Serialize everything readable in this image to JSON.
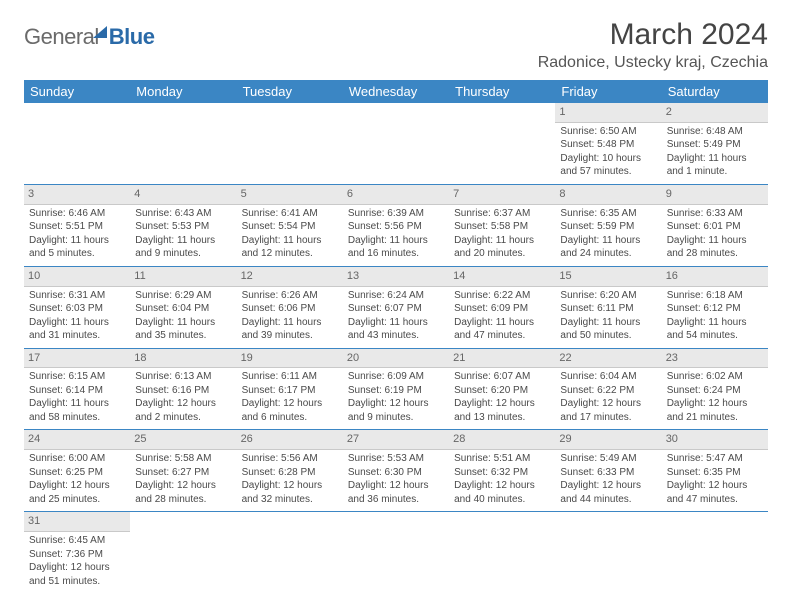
{
  "logo": {
    "text1": "General",
    "text2": "Blue"
  },
  "title": "March 2024",
  "location": "Radonice, Ustecky kraj, Czechia",
  "colors": {
    "header_bg": "#3b86c4",
    "header_fg": "#ffffff",
    "day_bg": "#e9e9e9",
    "border": "#3b86c4"
  },
  "day_headers": [
    "Sunday",
    "Monday",
    "Tuesday",
    "Wednesday",
    "Thursday",
    "Friday",
    "Saturday"
  ],
  "weeks": [
    [
      null,
      null,
      null,
      null,
      null,
      {
        "n": "1",
        "sr": "Sunrise: 6:50 AM",
        "ss": "Sunset: 5:48 PM",
        "d1": "Daylight: 10 hours",
        "d2": "and 57 minutes."
      },
      {
        "n": "2",
        "sr": "Sunrise: 6:48 AM",
        "ss": "Sunset: 5:49 PM",
        "d1": "Daylight: 11 hours",
        "d2": "and 1 minute."
      }
    ],
    [
      {
        "n": "3",
        "sr": "Sunrise: 6:46 AM",
        "ss": "Sunset: 5:51 PM",
        "d1": "Daylight: 11 hours",
        "d2": "and 5 minutes."
      },
      {
        "n": "4",
        "sr": "Sunrise: 6:43 AM",
        "ss": "Sunset: 5:53 PM",
        "d1": "Daylight: 11 hours",
        "d2": "and 9 minutes."
      },
      {
        "n": "5",
        "sr": "Sunrise: 6:41 AM",
        "ss": "Sunset: 5:54 PM",
        "d1": "Daylight: 11 hours",
        "d2": "and 12 minutes."
      },
      {
        "n": "6",
        "sr": "Sunrise: 6:39 AM",
        "ss": "Sunset: 5:56 PM",
        "d1": "Daylight: 11 hours",
        "d2": "and 16 minutes."
      },
      {
        "n": "7",
        "sr": "Sunrise: 6:37 AM",
        "ss": "Sunset: 5:58 PM",
        "d1": "Daylight: 11 hours",
        "d2": "and 20 minutes."
      },
      {
        "n": "8",
        "sr": "Sunrise: 6:35 AM",
        "ss": "Sunset: 5:59 PM",
        "d1": "Daylight: 11 hours",
        "d2": "and 24 minutes."
      },
      {
        "n": "9",
        "sr": "Sunrise: 6:33 AM",
        "ss": "Sunset: 6:01 PM",
        "d1": "Daylight: 11 hours",
        "d2": "and 28 minutes."
      }
    ],
    [
      {
        "n": "10",
        "sr": "Sunrise: 6:31 AM",
        "ss": "Sunset: 6:03 PM",
        "d1": "Daylight: 11 hours",
        "d2": "and 31 minutes."
      },
      {
        "n": "11",
        "sr": "Sunrise: 6:29 AM",
        "ss": "Sunset: 6:04 PM",
        "d1": "Daylight: 11 hours",
        "d2": "and 35 minutes."
      },
      {
        "n": "12",
        "sr": "Sunrise: 6:26 AM",
        "ss": "Sunset: 6:06 PM",
        "d1": "Daylight: 11 hours",
        "d2": "and 39 minutes."
      },
      {
        "n": "13",
        "sr": "Sunrise: 6:24 AM",
        "ss": "Sunset: 6:07 PM",
        "d1": "Daylight: 11 hours",
        "d2": "and 43 minutes."
      },
      {
        "n": "14",
        "sr": "Sunrise: 6:22 AM",
        "ss": "Sunset: 6:09 PM",
        "d1": "Daylight: 11 hours",
        "d2": "and 47 minutes."
      },
      {
        "n": "15",
        "sr": "Sunrise: 6:20 AM",
        "ss": "Sunset: 6:11 PM",
        "d1": "Daylight: 11 hours",
        "d2": "and 50 minutes."
      },
      {
        "n": "16",
        "sr": "Sunrise: 6:18 AM",
        "ss": "Sunset: 6:12 PM",
        "d1": "Daylight: 11 hours",
        "d2": "and 54 minutes."
      }
    ],
    [
      {
        "n": "17",
        "sr": "Sunrise: 6:15 AM",
        "ss": "Sunset: 6:14 PM",
        "d1": "Daylight: 11 hours",
        "d2": "and 58 minutes."
      },
      {
        "n": "18",
        "sr": "Sunrise: 6:13 AM",
        "ss": "Sunset: 6:16 PM",
        "d1": "Daylight: 12 hours",
        "d2": "and 2 minutes."
      },
      {
        "n": "19",
        "sr": "Sunrise: 6:11 AM",
        "ss": "Sunset: 6:17 PM",
        "d1": "Daylight: 12 hours",
        "d2": "and 6 minutes."
      },
      {
        "n": "20",
        "sr": "Sunrise: 6:09 AM",
        "ss": "Sunset: 6:19 PM",
        "d1": "Daylight: 12 hours",
        "d2": "and 9 minutes."
      },
      {
        "n": "21",
        "sr": "Sunrise: 6:07 AM",
        "ss": "Sunset: 6:20 PM",
        "d1": "Daylight: 12 hours",
        "d2": "and 13 minutes."
      },
      {
        "n": "22",
        "sr": "Sunrise: 6:04 AM",
        "ss": "Sunset: 6:22 PM",
        "d1": "Daylight: 12 hours",
        "d2": "and 17 minutes."
      },
      {
        "n": "23",
        "sr": "Sunrise: 6:02 AM",
        "ss": "Sunset: 6:24 PM",
        "d1": "Daylight: 12 hours",
        "d2": "and 21 minutes."
      }
    ],
    [
      {
        "n": "24",
        "sr": "Sunrise: 6:00 AM",
        "ss": "Sunset: 6:25 PM",
        "d1": "Daylight: 12 hours",
        "d2": "and 25 minutes."
      },
      {
        "n": "25",
        "sr": "Sunrise: 5:58 AM",
        "ss": "Sunset: 6:27 PM",
        "d1": "Daylight: 12 hours",
        "d2": "and 28 minutes."
      },
      {
        "n": "26",
        "sr": "Sunrise: 5:56 AM",
        "ss": "Sunset: 6:28 PM",
        "d1": "Daylight: 12 hours",
        "d2": "and 32 minutes."
      },
      {
        "n": "27",
        "sr": "Sunrise: 5:53 AM",
        "ss": "Sunset: 6:30 PM",
        "d1": "Daylight: 12 hours",
        "d2": "and 36 minutes."
      },
      {
        "n": "28",
        "sr": "Sunrise: 5:51 AM",
        "ss": "Sunset: 6:32 PM",
        "d1": "Daylight: 12 hours",
        "d2": "and 40 minutes."
      },
      {
        "n": "29",
        "sr": "Sunrise: 5:49 AM",
        "ss": "Sunset: 6:33 PM",
        "d1": "Daylight: 12 hours",
        "d2": "and 44 minutes."
      },
      {
        "n": "30",
        "sr": "Sunrise: 5:47 AM",
        "ss": "Sunset: 6:35 PM",
        "d1": "Daylight: 12 hours",
        "d2": "and 47 minutes."
      }
    ],
    [
      {
        "n": "31",
        "sr": "Sunrise: 6:45 AM",
        "ss": "Sunset: 7:36 PM",
        "d1": "Daylight: 12 hours",
        "d2": "and 51 minutes."
      },
      null,
      null,
      null,
      null,
      null,
      null
    ]
  ]
}
